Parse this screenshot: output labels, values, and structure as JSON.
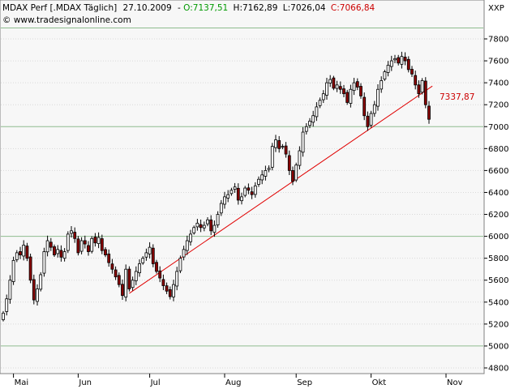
{
  "header": {
    "instrument": "MDAX Perf [.MDAX Täglich]",
    "date": "27.10.2009",
    "open_label": "O:",
    "open_value": "7137,51",
    "high_label": "H:",
    "high_value": "7162,89",
    "low_label": "L:",
    "low_value": "7026,04",
    "close_label": "C:",
    "close_value": "7066,84",
    "currency": "XXP",
    "watermark": "© www.tradesignalonline.com"
  },
  "colors": {
    "up": "#ffffff",
    "down": "#8b0000",
    "trendline": "#e00000",
    "open_text": "#009900",
    "close_text": "#cc0000",
    "plot_bg": "#f7f7f7",
    "grid_major": "#8fbc8f",
    "grid_minor": "#d9d9d9"
  },
  "chart_data": {
    "type": "candlestick",
    "title": "MDAX Perf [.MDAX Täglich]",
    "ylim": [
      4800,
      7950
    ],
    "yticks": [
      4800,
      5000,
      5200,
      5400,
      5600,
      5800,
      6000,
      6200,
      6400,
      6600,
      6800,
      7000,
      7200,
      7400,
      7600,
      7800
    ],
    "ytick_labels": [
      "4800",
      "5000",
      "5200",
      "5400",
      "5600",
      "5800",
      "6000",
      "6200",
      "6400",
      "6600",
      "6800",
      "7000",
      "7200",
      "7400",
      "7600",
      "7800"
    ],
    "major_gridlines": [
      5000,
      6000,
      7000,
      7900
    ],
    "xticks": [
      {
        "label": "Mai",
        "index": 3
      },
      {
        "label": "Jun",
        "index": 22
      },
      {
        "label": "Jul",
        "index": 43
      },
      {
        "label": "Aug",
        "index": 65
      },
      {
        "label": "Sep",
        "index": 86
      },
      {
        "label": "Okt",
        "index": 108
      },
      {
        "label": "Nov",
        "index": 130
      }
    ],
    "annotation": {
      "label": "7337,87",
      "value": 7337.87
    },
    "trendline": {
      "from": {
        "index": 37,
        "value": 5480
      },
      "to": {
        "index": 126,
        "value": 7370
      }
    },
    "closes": [
      5300,
      5430,
      5600,
      5780,
      5850,
      5830,
      5920,
      5800,
      5600,
      5420,
      5520,
      5650,
      5860,
      5960,
      5900,
      5830,
      5880,
      5810,
      5860,
      6020,
      6050,
      5980,
      5850,
      5960,
      5930,
      5860,
      5980,
      5940,
      5990,
      5870,
      5830,
      5760,
      5700,
      5630,
      5560,
      5460,
      5700,
      5520,
      5600,
      5680,
      5750,
      5800,
      5850,
      5900,
      5750,
      5680,
      5620,
      5550,
      5500,
      5450,
      5560,
      5680,
      5800,
      5880,
      5960,
      6020,
      6080,
      6120,
      6080,
      6100,
      6150,
      6050,
      6100,
      6200,
      6300,
      6360,
      6380,
      6420,
      6450,
      6330,
      6360,
      6440,
      6420,
      6380,
      6460,
      6520,
      6560,
      6600,
      6620,
      6820,
      6880,
      6800,
      6820,
      6750,
      6600,
      6500,
      6650,
      6780,
      6950,
      7000,
      7050,
      7100,
      7180,
      7240,
      7300,
      7400,
      7430,
      7350,
      7380,
      7340,
      7300,
      7220,
      7340,
      7400,
      7360,
      7280,
      7100,
      7000,
      7120,
      7200,
      7340,
      7420,
      7500,
      7560,
      7600,
      7620,
      7580,
      7640,
      7600,
      7520,
      7480,
      7380,
      7300,
      7420,
      7200,
      7067
    ]
  }
}
